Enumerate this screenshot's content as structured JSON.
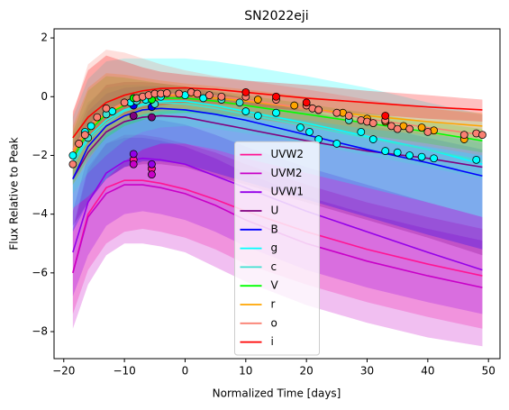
{
  "chart_data": {
    "type": "band-line",
    "title": "SN2022eji",
    "xlabel": "Normalized Time [days]",
    "ylabel": "Flux Relative to Peak",
    "xlim": [
      -21.6,
      51.9
    ],
    "ylim": [
      -8.92,
      2.31
    ],
    "xticks": [
      {
        "value": -20,
        "label": "−20"
      },
      {
        "value": -10,
        "label": "−10"
      },
      0,
      10,
      20,
      30,
      40,
      50
    ],
    "yticks": [
      {
        "value": -8,
        "label": "−8"
      },
      {
        "value": -6,
        "label": "−6"
      },
      {
        "value": -4,
        "label": "−4"
      },
      {
        "value": -2,
        "label": "−2"
      },
      0,
      2
    ],
    "grid": false,
    "legend": "lower center",
    "x": [
      -18.5,
      -16,
      -13,
      -10,
      -7,
      -4,
      0,
      5,
      10,
      20,
      30,
      40,
      49
    ],
    "series": [
      {
        "name": "UVW2",
        "color": "#ff1493",
        "values": [
          -6.0,
          -4.0,
          -3.1,
          -2.85,
          -2.85,
          -2.95,
          -3.15,
          -3.5,
          -3.9,
          -4.6,
          -5.2,
          -5.7,
          -6.1
        ],
        "upper": [
          -4.6,
          -2.5,
          -1.6,
          -1.3,
          -1.3,
          -1.4,
          -1.6,
          -1.9,
          -2.3,
          -3.0,
          -3.6,
          -4.1,
          -4.5
        ],
        "lower": [
          -7.4,
          -5.9,
          -5.0,
          -4.6,
          -4.5,
          -4.6,
          -4.8,
          -5.2,
          -5.7,
          -6.4,
          -7.0,
          -7.5,
          -7.9
        ],
        "obs_x": [
          -8.5,
          -5.5
        ],
        "obs_y": [
          -2.15,
          -2.45
        ]
      },
      {
        "name": "UVM2",
        "color": "#c800c8",
        "values": [
          -6.0,
          -4.1,
          -3.3,
          -3.0,
          -3.0,
          -3.1,
          -3.3,
          -3.7,
          -4.2,
          -5.0,
          -5.6,
          -6.1,
          -6.5
        ],
        "upper": [
          -4.5,
          -2.4,
          -1.6,
          -1.4,
          -1.4,
          -1.5,
          -1.7,
          -2.1,
          -2.6,
          -3.4,
          -4.0,
          -4.5,
          -4.9
        ],
        "lower": [
          -7.9,
          -6.4,
          -5.4,
          -5.0,
          -5.0,
          -5.1,
          -5.3,
          -5.8,
          -6.3,
          -7.1,
          -7.7,
          -8.2,
          -8.5
        ],
        "obs_x": [
          -8.5,
          -5.5
        ],
        "obs_y": [
          -2.3,
          -2.65
        ]
      },
      {
        "name": "UVW1",
        "color": "#9400e8",
        "values": [
          -5.3,
          -3.6,
          -2.6,
          -2.2,
          -2.1,
          -2.15,
          -2.3,
          -2.7,
          -3.1,
          -3.9,
          -4.6,
          -5.3,
          -5.9
        ],
        "upper": [
          -3.9,
          -2.0,
          -1.1,
          -0.8,
          -0.75,
          -0.8,
          -0.95,
          -1.3,
          -1.7,
          -2.4,
          -3.0,
          -3.6,
          -4.1
        ],
        "lower": [
          -6.8,
          -5.4,
          -4.4,
          -4.0,
          -3.9,
          -4.0,
          -4.2,
          -4.6,
          -5.1,
          -5.9,
          -6.5,
          -7.0,
          -7.4
        ],
        "obs_x": [
          -8.5,
          -5.5
        ],
        "obs_y": [
          -1.95,
          -2.3
        ]
      },
      {
        "name": "U",
        "color": "#800080",
        "values": [
          -2.8,
          -1.9,
          -1.2,
          -0.85,
          -0.7,
          -0.65,
          -0.7,
          -0.9,
          -1.1,
          -1.5,
          -1.85,
          -2.1,
          -2.4
        ],
        "upper": [
          -1.6,
          -0.3,
          0.4,
          0.5,
          0.5,
          0.45,
          0.35,
          0.15,
          -0.05,
          -0.5,
          -0.9,
          -1.25,
          -1.5
        ],
        "lower": [
          -4.4,
          -3.6,
          -2.8,
          -2.4,
          -2.3,
          -2.3,
          -2.4,
          -2.7,
          -3.0,
          -3.6,
          -4.2,
          -4.8,
          -5.4
        ],
        "obs_x": [
          -8.5,
          -5.5
        ],
        "obs_y": [
          -0.65,
          -0.7
        ]
      },
      {
        "name": "B",
        "color": "#0000ff",
        "values": [
          -2.8,
          -1.7,
          -1.0,
          -0.65,
          -0.45,
          -0.4,
          -0.45,
          -0.6,
          -0.8,
          -1.3,
          -1.8,
          -2.25,
          -2.7
        ],
        "upper": [
          -1.8,
          -0.5,
          0.1,
          0.3,
          0.35,
          0.35,
          0.3,
          0.15,
          -0.05,
          -0.5,
          -0.95,
          -1.4,
          -1.8
        ],
        "lower": [
          -4.6,
          -3.6,
          -2.8,
          -2.4,
          -2.2,
          -2.2,
          -2.3,
          -2.6,
          -2.9,
          -3.5,
          -4.1,
          -4.7,
          -5.2
        ],
        "obs_x": [
          -8.5,
          -5.5
        ],
        "obs_y": [
          -0.3,
          -0.35
        ]
      },
      {
        "name": "g",
        "color": "#00ffff",
        "values": [
          -2.2,
          -1.4,
          -0.8,
          -0.45,
          -0.25,
          -0.15,
          -0.15,
          -0.3,
          -0.5,
          -0.9,
          -1.35,
          -1.8,
          -2.3
        ],
        "upper": [
          -0.7,
          0.6,
          1.2,
          1.3,
          1.3,
          1.3,
          1.3,
          1.2,
          1.05,
          0.7,
          0.3,
          -0.2,
          -0.6
        ],
        "lower": [
          -3.8,
          -3.4,
          -2.8,
          -2.2,
          -1.8,
          -1.6,
          -1.6,
          -1.8,
          -2.1,
          -2.6,
          -3.1,
          -3.6,
          -4.1
        ],
        "obs_x": [
          -18.5,
          -16.5,
          -15.5,
          -12,
          -9,
          -6.5,
          -4,
          0,
          3,
          10,
          12,
          15,
          19,
          20.5,
          22,
          25,
          29,
          31,
          33,
          35,
          37,
          39,
          41,
          48
        ],
        "obs_y": [
          -2.0,
          -1.2,
          -1.0,
          -0.5,
          -0.2,
          -0.1,
          0.0,
          0.05,
          -0.05,
          -0.5,
          -0.65,
          -0.55,
          -1.05,
          -1.2,
          -1.45,
          -1.6,
          -1.2,
          -1.45,
          -1.85,
          -1.9,
          -2.0,
          -2.05,
          -2.1,
          -2.15
        ]
      },
      {
        "name": "c",
        "color": "#40e0d0",
        "values": [
          -2.3,
          -1.5,
          -0.9,
          -0.5,
          -0.3,
          -0.2,
          -0.25,
          -0.4,
          -0.6,
          -1.0,
          -1.4,
          -1.8,
          -2.2
        ],
        "upper": [
          -1.3,
          -0.2,
          0.3,
          0.4,
          0.4,
          0.35,
          0.3,
          0.15,
          -0.05,
          -0.45,
          -0.85,
          -1.25,
          -1.6
        ],
        "lower": [
          -3.3,
          -2.6,
          -2.0,
          -1.5,
          -1.2,
          -1.05,
          -1.0,
          -1.1,
          -1.25,
          -1.6,
          -2.0,
          -2.4,
          -2.8
        ],
        "obs_x": [
          -16,
          -13,
          -8,
          -5,
          6,
          9,
          27
        ],
        "obs_y": [
          -1.4,
          -0.6,
          -0.15,
          -0.25,
          -0.1,
          -0.2,
          -0.8
        ]
      },
      {
        "name": "V",
        "color": "#00ff00",
        "values": [
          -2.1,
          -1.2,
          -0.6,
          -0.3,
          -0.1,
          -0.05,
          -0.05,
          -0.15,
          -0.3,
          -0.6,
          -0.9,
          -1.2,
          -1.5
        ],
        "upper": [
          -1.2,
          0.2,
          0.7,
          0.65,
          0.55,
          0.45,
          0.35,
          0.2,
          0.05,
          -0.25,
          -0.55,
          -0.85,
          -1.1
        ],
        "lower": [
          -3.0,
          -2.1,
          -1.4,
          -1.0,
          -0.8,
          -0.6,
          -0.55,
          -0.6,
          -0.7,
          -1.0,
          -1.3,
          -1.6,
          -1.9
        ],
        "obs_x": [
          -8.5,
          -5.5
        ],
        "obs_y": [
          -0.05,
          -0.1
        ]
      },
      {
        "name": "r",
        "color": "#ffa500",
        "values": [
          -1.9,
          -1.1,
          -0.55,
          -0.25,
          -0.05,
          0.05,
          0.05,
          -0.05,
          -0.15,
          -0.4,
          -0.65,
          -0.85,
          -1.0
        ],
        "upper": [
          -1.0,
          0.3,
          0.8,
          0.75,
          0.65,
          0.55,
          0.45,
          0.35,
          0.25,
          0.0,
          -0.2,
          -0.4,
          -0.55
        ],
        "lower": [
          -2.8,
          -2.0,
          -1.2,
          -0.8,
          -0.6,
          -0.45,
          -0.4,
          -0.45,
          -0.55,
          -0.8,
          -1.1,
          -1.3,
          -1.45
        ],
        "obs_x": [
          12,
          18,
          22,
          26,
          30,
          33,
          36,
          39,
          41,
          46
        ],
        "obs_y": [
          -0.1,
          -0.3,
          -0.45,
          -0.55,
          -0.75,
          -0.85,
          -1.0,
          -1.05,
          -1.15,
          -1.45
        ]
      },
      {
        "name": "o",
        "color": "#fa8072",
        "values": [
          -1.8,
          -1.0,
          -0.5,
          -0.2,
          0.0,
          0.08,
          0.1,
          0.02,
          -0.1,
          -0.4,
          -0.75,
          -1.05,
          -1.3
        ],
        "upper": [
          -0.6,
          1.1,
          1.6,
          1.5,
          1.3,
          1.1,
          0.9,
          0.7,
          0.55,
          0.25,
          -0.1,
          -0.4,
          -0.6
        ],
        "lower": [
          -3.0,
          -2.2,
          -1.3,
          -0.9,
          -0.6,
          -0.5,
          -0.45,
          -0.55,
          -0.7,
          -1.05,
          -1.4,
          -1.7,
          -2.0
        ],
        "obs_x": [
          -18.5,
          -17.5,
          -16.5,
          -14.5,
          -13,
          -10,
          -8,
          -7,
          -6,
          -5,
          -4,
          -3,
          -1,
          1,
          2,
          4,
          6,
          10,
          15,
          20,
          21,
          22,
          25,
          27,
          29,
          30,
          31,
          33,
          34,
          35,
          37,
          40,
          46,
          48,
          49
        ],
        "obs_y": [
          -2.3,
          -1.6,
          -1.3,
          -0.7,
          -0.4,
          -0.2,
          -0.05,
          0.0,
          0.05,
          0.1,
          0.1,
          0.12,
          0.1,
          0.15,
          0.1,
          0.05,
          0.0,
          0.0,
          -0.1,
          -0.3,
          -0.4,
          -0.45,
          -0.55,
          -0.65,
          -0.8,
          -0.85,
          -0.9,
          -0.8,
          -1.0,
          -1.1,
          -1.1,
          -1.2,
          -1.3,
          -1.25,
          -1.3
        ]
      },
      {
        "name": "i",
        "color": "#ff0000",
        "values": [
          -1.4,
          -0.7,
          -0.2,
          0.05,
          0.2,
          0.28,
          0.3,
          0.25,
          0.15,
          -0.05,
          -0.2,
          -0.35,
          -0.45
        ],
        "upper": [
          -0.5,
          0.9,
          1.4,
          1.2,
          1.0,
          0.85,
          0.75,
          0.65,
          0.55,
          0.4,
          0.2,
          0.05,
          -0.1
        ],
        "lower": [
          -2.3,
          -1.6,
          -0.9,
          -0.6,
          -0.4,
          -0.3,
          -0.2,
          -0.25,
          -0.3,
          -0.5,
          -0.6,
          -0.75,
          -0.85
        ],
        "obs_x": [
          10,
          15,
          20,
          33
        ],
        "obs_y": [
          0.15,
          0.0,
          -0.2,
          -0.65
        ]
      }
    ]
  }
}
